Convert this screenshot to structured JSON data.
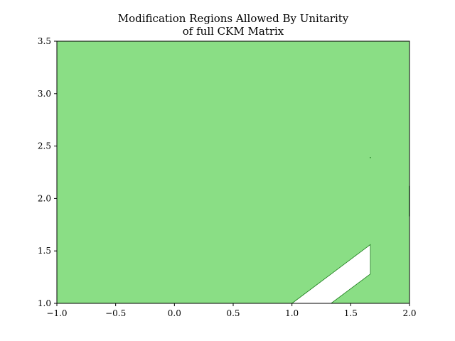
{
  "chart_data": {
    "type": "area",
    "title": [
      "Modification Regions Allowed By Unitarity",
      "of full CKM Matrix"
    ],
    "xlabel": "",
    "ylabel": "",
    "xlim": [
      -1.0,
      2.0
    ],
    "ylim": [
      1.0,
      3.5
    ],
    "xticks": [
      -1.0,
      -0.5,
      0.0,
      0.5,
      1.0,
      1.5,
      2.0
    ],
    "xtick_labels": [
      "−1.0",
      "−0.5",
      "0.0",
      "0.5",
      "1.0",
      "1.5",
      "2.0"
    ],
    "yticks": [
      1.0,
      1.5,
      2.0,
      2.5,
      3.0,
      3.5
    ],
    "ytick_labels": [
      "1.0",
      "1.5",
      "2.0",
      "2.5",
      "3.0",
      "3.5"
    ],
    "grid": false,
    "legend": "none",
    "fill_color": "#8ade85",
    "edge_color": "#1a7a1a",
    "allowed_region": {
      "x": [
        -1.0,
        2.0
      ],
      "y": [
        1.0,
        3.5
      ]
    },
    "excluded_region": {
      "points": [
        [
          1.0,
          1.0
        ],
        [
          1.667,
          1.56
        ],
        [
          1.667,
          1.28
        ],
        [
          1.333,
          1.0
        ]
      ]
    },
    "artifacts": {
      "edge_line": {
        "x": 2.0,
        "y": [
          1.83,
          2.12
        ]
      },
      "dot": {
        "x": 1.667,
        "y": 2.39
      }
    }
  }
}
